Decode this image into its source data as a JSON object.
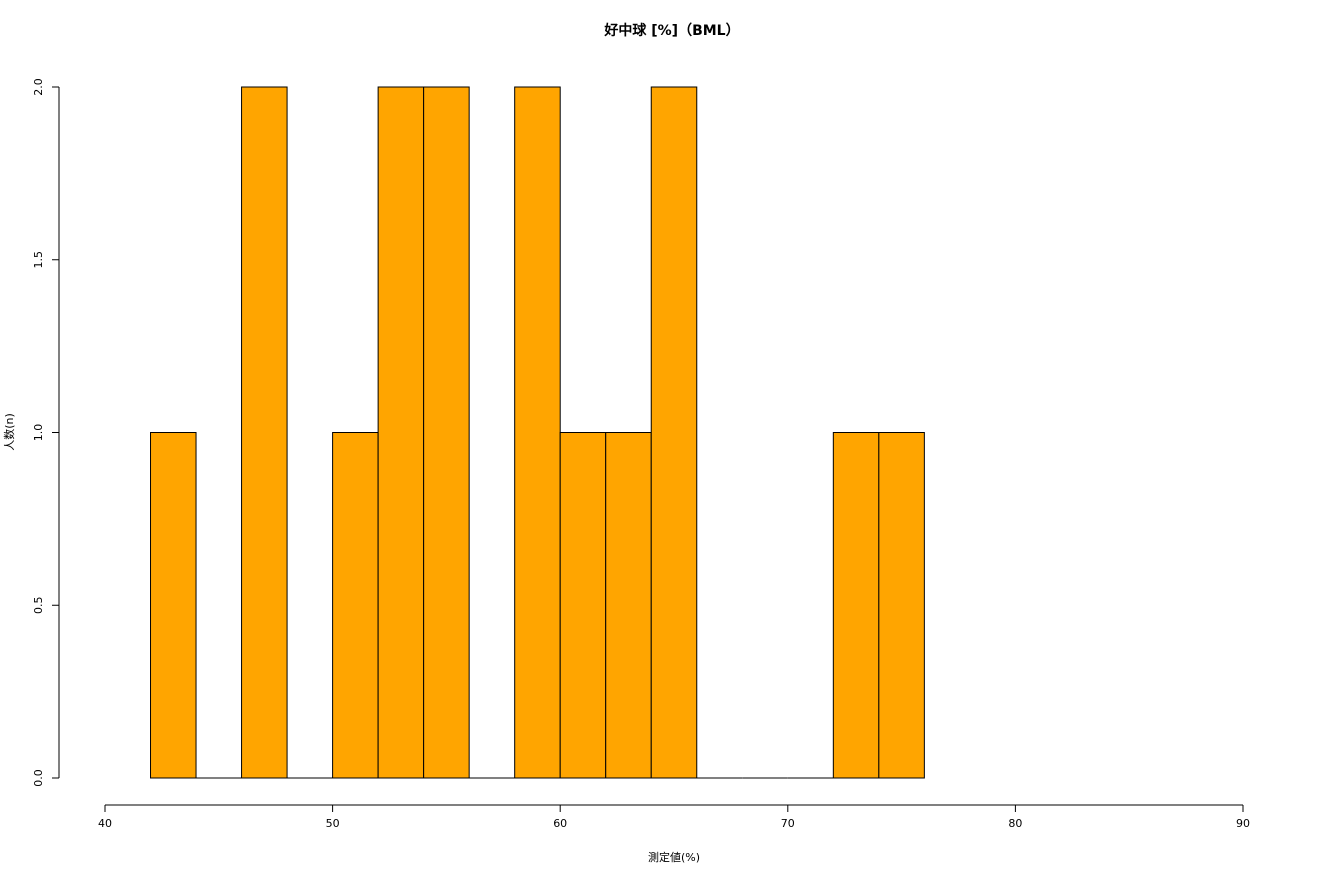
{
  "chart_data": {
    "type": "bar",
    "title": "好中球 [%]（BML）",
    "xlabel": "測定値(%)",
    "ylabel": "人数(n)",
    "bar_color": "#FFA500",
    "edge_color": "#000000",
    "xlim": [
      40,
      90
    ],
    "ylim": [
      0,
      2
    ],
    "x_ticks": [
      40,
      50,
      60,
      70,
      80,
      90
    ],
    "y_ticks": [
      "0.0",
      "0.5",
      "1.0",
      "1.5",
      "2.0"
    ],
    "bins": [
      {
        "start": 42,
        "end": 44,
        "count": 1
      },
      {
        "start": 44,
        "end": 46,
        "count": 0
      },
      {
        "start": 46,
        "end": 48,
        "count": 2
      },
      {
        "start": 48,
        "end": 50,
        "count": 0
      },
      {
        "start": 50,
        "end": 52,
        "count": 1
      },
      {
        "start": 52,
        "end": 54,
        "count": 2
      },
      {
        "start": 54,
        "end": 56,
        "count": 2
      },
      {
        "start": 56,
        "end": 58,
        "count": 0
      },
      {
        "start": 58,
        "end": 60,
        "count": 2
      },
      {
        "start": 60,
        "end": 62,
        "count": 1
      },
      {
        "start": 62,
        "end": 64,
        "count": 1
      },
      {
        "start": 64,
        "end": 66,
        "count": 2
      },
      {
        "start": 66,
        "end": 68,
        "count": 0
      },
      {
        "start": 68,
        "end": 70,
        "count": 0
      },
      {
        "start": 70,
        "end": 72,
        "count": 0
      },
      {
        "start": 72,
        "end": 74,
        "count": 1
      },
      {
        "start": 74,
        "end": 76,
        "count": 1
      }
    ],
    "grid": false,
    "legend": "none"
  }
}
